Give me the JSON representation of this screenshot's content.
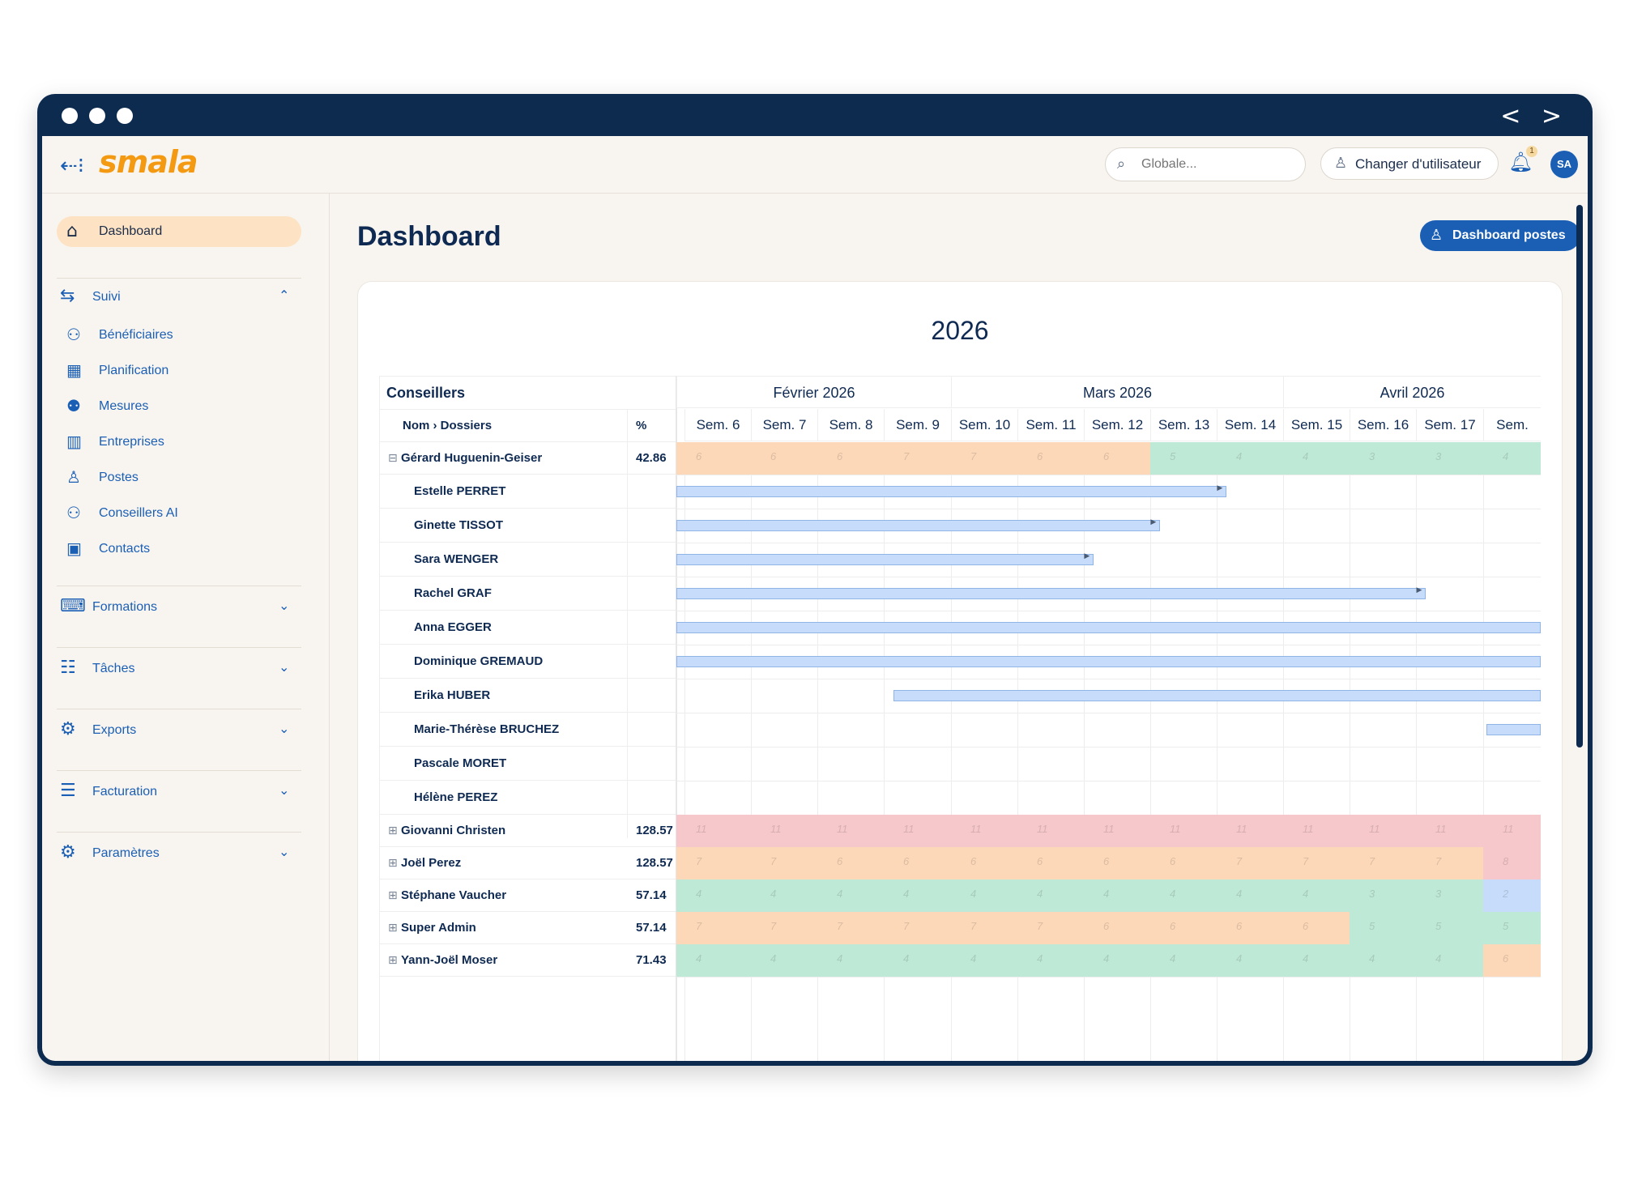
{
  "window": {
    "nav_arrows": "< >"
  },
  "topbar": {
    "back_icon": "back-arrow-icon",
    "logo_text": "smala",
    "search_placeholder": "Globale...",
    "switch_user_label": "Changer d'utilisateur",
    "notification_count": "1",
    "avatar_initials": "SA"
  },
  "sidebar": {
    "dashboard_label": "Dashboard",
    "suivi": {
      "label": "Suivi",
      "items": [
        {
          "label": "Bénéficiaires",
          "icon": "people-icon"
        },
        {
          "label": "Planification",
          "icon": "calendar-icon"
        },
        {
          "label": "Mesures",
          "icon": "group-icon"
        },
        {
          "label": "Entreprises",
          "icon": "building-icon"
        },
        {
          "label": "Postes",
          "icon": "person-pin-icon"
        },
        {
          "label": "Conseillers AI",
          "icon": "advisors-icon"
        },
        {
          "label": "Contacts",
          "icon": "contact-card-icon"
        }
      ]
    },
    "sections": [
      {
        "label": "Formations",
        "icon": "training-icon"
      },
      {
        "label": "Tâches",
        "icon": "clipboard-icon"
      },
      {
        "label": "Exports",
        "icon": "gears-icon"
      },
      {
        "label": "Facturation",
        "icon": "receipt-icon"
      },
      {
        "label": "Paramètres",
        "icon": "settings-folder-icon"
      }
    ]
  },
  "main": {
    "title": "Dashboard",
    "postes_button": "Dashboard postes"
  },
  "planning": {
    "year": "2026",
    "header_conseillers": "Conseillers",
    "col_nom": "Nom › Dossiers",
    "col_pct": "%",
    "months": [
      {
        "label": "Février 2026",
        "span": 4
      },
      {
        "label": "Mars 2026",
        "span": 5
      },
      {
        "label": "Avril 2026",
        "span": 4
      }
    ],
    "weeks": [
      "Sem. 6",
      "Sem. 7",
      "Sem. 8",
      "Sem. 9",
      "Sem. 10",
      "Sem. 11",
      "Sem. 12",
      "Sem. 13",
      "Sem. 14",
      "Sem. 15",
      "Sem. 16",
      "Sem. 17",
      "Sem."
    ],
    "colors": {
      "orange": "#fdd8b8",
      "green": "#bfe9d7",
      "red": "#f7c8cb",
      "blue": "#c6dcfa"
    },
    "expanded": {
      "name": "Gérard Huguenin-Geiser",
      "pct": "42.86",
      "cells": [
        {
          "v": "6",
          "c": "orange"
        },
        {
          "v": "6",
          "c": "orange"
        },
        {
          "v": "6",
          "c": "orange"
        },
        {
          "v": "7",
          "c": "orange"
        },
        {
          "v": "7",
          "c": "orange"
        },
        {
          "v": "6",
          "c": "orange"
        },
        {
          "v": "6",
          "c": "orange"
        },
        {
          "v": "5",
          "c": "green"
        },
        {
          "v": "4",
          "c": "green"
        },
        {
          "v": "4",
          "c": "green"
        },
        {
          "v": "3",
          "c": "green"
        },
        {
          "v": "3",
          "c": "green"
        },
        {
          "v": "4",
          "c": "green"
        }
      ],
      "dossiers": [
        {
          "name": "Estelle PERRET",
          "bar": {
            "start": 0,
            "end": 8.15,
            "arrow": true
          }
        },
        {
          "name": "Ginette TISSOT",
          "bar": {
            "start": 0,
            "end": 7.15,
            "arrow": true
          }
        },
        {
          "name": "Sara WENGER",
          "bar": {
            "start": 0,
            "end": 6.15,
            "arrow": true
          }
        },
        {
          "name": "Rachel GRAF",
          "bar": {
            "start": 0,
            "end": 11.15,
            "arrow": true
          }
        },
        {
          "name": "Anna EGGER",
          "bar": {
            "start": 0,
            "end": 13,
            "arrow": false
          }
        },
        {
          "name": "Dominique GREMAUD",
          "bar": {
            "start": 0,
            "end": 13,
            "arrow": false
          }
        },
        {
          "name": "Erika HUBER",
          "bar": {
            "start": 3.15,
            "end": 13,
            "arrow": false
          }
        },
        {
          "name": "Marie-Thérèse BRUCHEZ",
          "bar": {
            "start": 12.05,
            "end": 13,
            "arrow": false
          }
        },
        {
          "name": "Pascale MORET",
          "bar": null
        },
        {
          "name": "Hélène PEREZ",
          "bar": null
        }
      ]
    },
    "collapsed": [
      {
        "name": "Giovanni Christen",
        "pct": "128.57",
        "cells": [
          {
            "v": "11",
            "c": "red"
          },
          {
            "v": "11",
            "c": "red"
          },
          {
            "v": "11",
            "c": "red"
          },
          {
            "v": "11",
            "c": "red"
          },
          {
            "v": "11",
            "c": "red"
          },
          {
            "v": "11",
            "c": "red"
          },
          {
            "v": "11",
            "c": "red"
          },
          {
            "v": "11",
            "c": "red"
          },
          {
            "v": "11",
            "c": "red"
          },
          {
            "v": "11",
            "c": "red"
          },
          {
            "v": "11",
            "c": "red"
          },
          {
            "v": "11",
            "c": "red"
          },
          {
            "v": "11",
            "c": "red"
          }
        ]
      },
      {
        "name": "Joël Perez",
        "pct": "128.57",
        "cells": [
          {
            "v": "7",
            "c": "orange"
          },
          {
            "v": "7",
            "c": "orange"
          },
          {
            "v": "6",
            "c": "orange"
          },
          {
            "v": "6",
            "c": "orange"
          },
          {
            "v": "6",
            "c": "orange"
          },
          {
            "v": "6",
            "c": "orange"
          },
          {
            "v": "6",
            "c": "orange"
          },
          {
            "v": "6",
            "c": "orange"
          },
          {
            "v": "7",
            "c": "orange"
          },
          {
            "v": "7",
            "c": "orange"
          },
          {
            "v": "7",
            "c": "orange"
          },
          {
            "v": "7",
            "c": "orange"
          },
          {
            "v": "8",
            "c": "red"
          }
        ]
      },
      {
        "name": "Stéphane Vaucher",
        "pct": "57.14",
        "cells": [
          {
            "v": "4",
            "c": "green"
          },
          {
            "v": "4",
            "c": "green"
          },
          {
            "v": "4",
            "c": "green"
          },
          {
            "v": "4",
            "c": "green"
          },
          {
            "v": "4",
            "c": "green"
          },
          {
            "v": "4",
            "c": "green"
          },
          {
            "v": "4",
            "c": "green"
          },
          {
            "v": "4",
            "c": "green"
          },
          {
            "v": "4",
            "c": "green"
          },
          {
            "v": "4",
            "c": "green"
          },
          {
            "v": "3",
            "c": "green"
          },
          {
            "v": "3",
            "c": "green"
          },
          {
            "v": "2",
            "c": "blue"
          }
        ]
      },
      {
        "name": "Super Admin",
        "pct": "57.14",
        "cells": [
          {
            "v": "7",
            "c": "orange"
          },
          {
            "v": "7",
            "c": "orange"
          },
          {
            "v": "7",
            "c": "orange"
          },
          {
            "v": "7",
            "c": "orange"
          },
          {
            "v": "7",
            "c": "orange"
          },
          {
            "v": "7",
            "c": "orange"
          },
          {
            "v": "6",
            "c": "orange"
          },
          {
            "v": "6",
            "c": "orange"
          },
          {
            "v": "6",
            "c": "orange"
          },
          {
            "v": "6",
            "c": "orange"
          },
          {
            "v": "5",
            "c": "green"
          },
          {
            "v": "5",
            "c": "green"
          },
          {
            "v": "5",
            "c": "green"
          }
        ]
      },
      {
        "name": "Yann-Joël Moser",
        "pct": "71.43",
        "cells": [
          {
            "v": "4",
            "c": "green"
          },
          {
            "v": "4",
            "c": "green"
          },
          {
            "v": "4",
            "c": "green"
          },
          {
            "v": "4",
            "c": "green"
          },
          {
            "v": "4",
            "c": "green"
          },
          {
            "v": "4",
            "c": "green"
          },
          {
            "v": "4",
            "c": "green"
          },
          {
            "v": "4",
            "c": "green"
          },
          {
            "v": "4",
            "c": "green"
          },
          {
            "v": "4",
            "c": "green"
          },
          {
            "v": "4",
            "c": "green"
          },
          {
            "v": "4",
            "c": "green"
          },
          {
            "v": "6",
            "c": "orange"
          }
        ]
      }
    ]
  }
}
